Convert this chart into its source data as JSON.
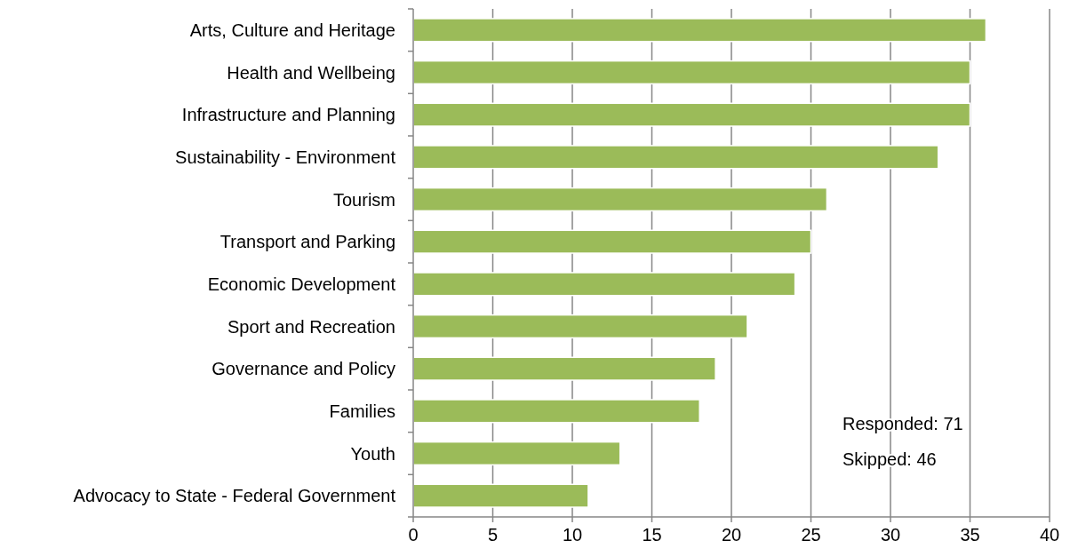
{
  "chart_data": {
    "type": "bar",
    "orientation": "horizontal",
    "categories": [
      "Arts, Culture and Heritage",
      "Health and Wellbeing",
      "Infrastructure and Planning",
      "Sustainability - Environment",
      "Tourism",
      "Transport and Parking",
      "Economic Development",
      "Sport and Recreation",
      "Governance and Policy",
      "Families",
      "Youth",
      "Advocacy to State - Federal Government"
    ],
    "values": [
      36,
      35,
      35,
      33,
      26,
      25,
      24,
      21,
      19,
      18,
      13,
      11
    ],
    "color": "#9bbb59",
    "xlim": [
      0,
      40
    ],
    "xticks": [
      0,
      5,
      10,
      15,
      20,
      25,
      30,
      35,
      40
    ],
    "grid": "x",
    "annotations": [
      "Responded: 71",
      "Skipped: 46"
    ]
  }
}
